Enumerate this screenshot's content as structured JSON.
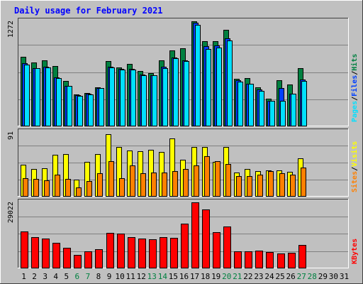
{
  "chart_data": {
    "type": "bar",
    "title": "Daily usage for February 2021",
    "categories": [
      "1",
      "2",
      "3",
      "4",
      "5",
      "6",
      "7",
      "8",
      "9",
      "10",
      "11",
      "12",
      "13",
      "14",
      "15",
      "16",
      "17",
      "18",
      "19",
      "20",
      "21",
      "22",
      "23",
      "24",
      "25",
      "26",
      "27",
      "28",
      "29",
      "30",
      "31"
    ],
    "weekend_days": [
      "6",
      "7",
      "13",
      "14",
      "20",
      "21",
      "27",
      "28"
    ],
    "colors": {
      "background": "#c0c0c0",
      "hits": "#008040",
      "files": "#0040ff",
      "pages": "#00e0ff",
      "visits": "#ffff00",
      "sites": "#ff8000",
      "kbytes": "#ff0000",
      "title": "#0000ff",
      "weekday_label": "#000000",
      "weekend_label": "#008040"
    },
    "panels": [
      {
        "id": "hits-files-pages",
        "ymax_label": "1272",
        "ylim": [
          0,
          1272
        ],
        "legend": [
          {
            "label": "Pages",
            "color": "#00e0ff"
          },
          {
            "label": "/",
            "color": "#000000"
          },
          {
            "label": "Files",
            "color": "#0040ff"
          },
          {
            "label": "/",
            "color": "#000000"
          },
          {
            "label": "Hits",
            "color": "#008040"
          }
        ],
        "series": [
          {
            "name": "Hits",
            "color": "#008040",
            "values": [
              842,
              767,
              798,
              728,
              544,
              385,
              400,
              469,
              788,
              709,
              755,
              669,
              638,
              798,
              913,
              943,
              1272,
              1034,
              1034,
              1166,
              574,
              582,
              469,
              325,
              558,
              498,
              698,
              0,
              0,
              0,
              0
            ]
          },
          {
            "name": "Files",
            "color": "#0040ff",
            "values": [
              758,
              701,
              721,
              586,
              488,
              373,
              388,
              457,
              717,
              688,
              692,
              624,
              616,
              714,
              835,
              797,
              1253,
              965,
              975,
              1067,
              551,
              514,
              441,
              306,
              456,
              387,
              563,
              0,
              0,
              0,
              0
            ]
          },
          {
            "name": "Pages",
            "color": "#00e0ff",
            "values": [
              748,
              698,
              713,
              580,
              483,
              363,
              381,
              457,
              713,
              682,
              684,
              612,
              611,
              698,
              824,
              787,
              1227,
              936,
              950,
              1036,
              540,
              508,
              428,
              301,
              305,
              386,
              547,
              0,
              0,
              0,
              0
            ]
          }
        ]
      },
      {
        "id": "visits-sites",
        "ymax_label": "91",
        "ylim": [
          0,
          91
        ],
        "legend": [
          {
            "label": "Sites",
            "color": "#ff8000"
          },
          {
            "label": "/",
            "color": "#000000"
          },
          {
            "label": "Visits",
            "color": "#ffff00"
          }
        ],
        "series": [
          {
            "name": "Visits",
            "color": "#ffff00",
            "values": [
              44,
              38,
              39,
              59,
              60,
              23,
              49,
              60,
              88,
              70,
              65,
              64,
              66,
              63,
              82,
              52,
              70,
              70,
              49,
              70,
              33,
              38,
              35,
              36,
              36,
              34,
              54,
              0,
              0,
              0,
              0
            ]
          },
          {
            "name": "Sites",
            "color": "#ff8000",
            "values": [
              25,
              24,
              22,
              30,
              24,
              12,
              21,
              32,
              50,
              25,
              43,
              32,
              33,
              33,
              35,
              38,
              43,
              57,
              50,
              45,
              28,
              28,
              30,
              35,
              32,
              30,
              40,
              0,
              0,
              0,
              0
            ]
          }
        ]
      },
      {
        "id": "kbytes",
        "ymax_label": "29022",
        "ylim": [
          0,
          29022
        ],
        "legend": [
          {
            "label": "KBytes",
            "color": "#ff0000"
          }
        ],
        "series": [
          {
            "name": "KBytes",
            "color": "#ff0000",
            "values": [
              16000,
              13600,
              12900,
              11000,
              8800,
              5600,
              7200,
              8200,
              15500,
              15200,
              13700,
              12900,
              12500,
              13600,
              13300,
              19500,
              29022,
              26000,
              15900,
              18300,
              7200,
              7200,
              7600,
              7000,
              6400,
              6600,
              10000,
              0,
              0,
              0,
              0
            ]
          }
        ]
      }
    ]
  }
}
